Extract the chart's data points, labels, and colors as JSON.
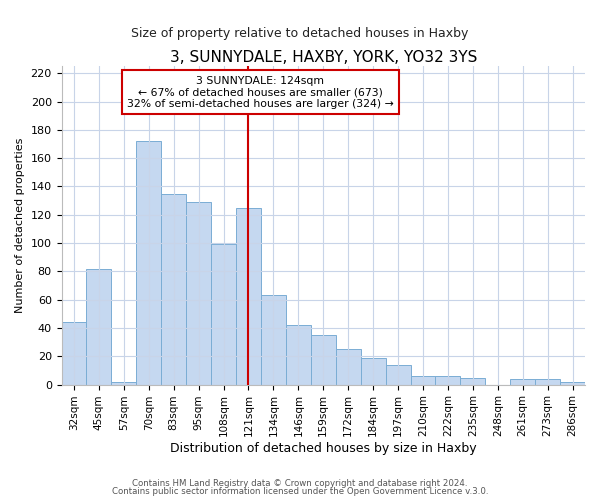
{
  "title": "3, SUNNYDALE, HAXBY, YORK, YO32 3YS",
  "subtitle": "Size of property relative to detached houses in Haxby",
  "xlabel": "Distribution of detached houses by size in Haxby",
  "ylabel": "Number of detached properties",
  "bar_labels": [
    "32sqm",
    "45sqm",
    "57sqm",
    "70sqm",
    "83sqm",
    "95sqm",
    "108sqm",
    "121sqm",
    "134sqm",
    "146sqm",
    "159sqm",
    "172sqm",
    "184sqm",
    "197sqm",
    "210sqm",
    "222sqm",
    "235sqm",
    "248sqm",
    "261sqm",
    "273sqm",
    "286sqm"
  ],
  "bar_values": [
    44,
    82,
    2,
    172,
    135,
    129,
    99,
    125,
    63,
    42,
    35,
    25,
    19,
    14,
    6,
    6,
    5,
    0,
    4,
    4,
    2
  ],
  "bar_color": "#c5d8f0",
  "bar_edge_color": "#7aadd4",
  "vline_index": 7,
  "vline_color": "#cc0000",
  "annotation_title": "3 SUNNYDALE: 124sqm",
  "annotation_line1": "← 67% of detached houses are smaller (673)",
  "annotation_line2": "32% of semi-detached houses are larger (324) →",
  "annotation_box_color": "#ffffff",
  "annotation_box_edge": "#cc0000",
  "ylim": [
    0,
    225
  ],
  "yticks": [
    0,
    20,
    40,
    60,
    80,
    100,
    120,
    140,
    160,
    180,
    200,
    220
  ],
  "footer1": "Contains HM Land Registry data © Crown copyright and database right 2024.",
  "footer2": "Contains public sector information licensed under the Open Government Licence v.3.0.",
  "background_color": "#ffffff",
  "grid_color": "#c8d4e8",
  "title_fontsize": 11,
  "subtitle_fontsize": 9,
  "ylabel_fontsize": 8,
  "xlabel_fontsize": 9
}
